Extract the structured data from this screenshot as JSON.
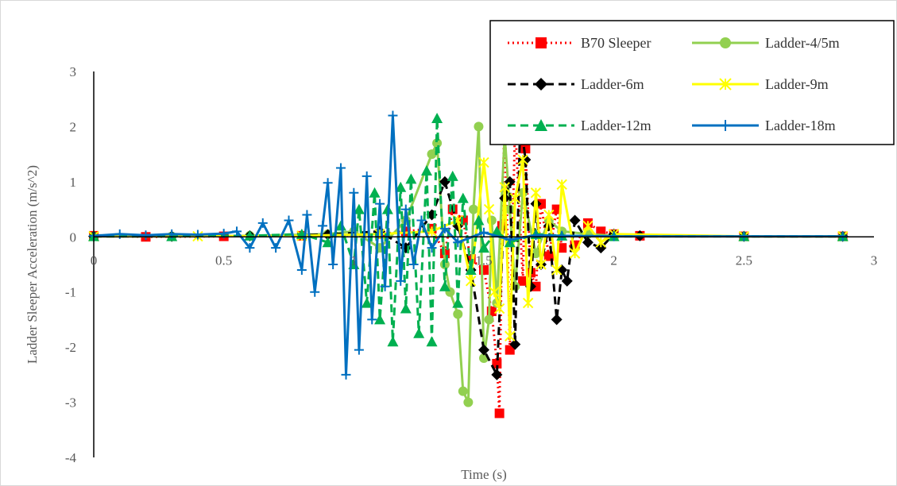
{
  "chart_data": {
    "type": "line",
    "title": "",
    "xlabel": "Time (s)",
    "ylabel": "Ladder Sleeper Acceleration (m/s^2)",
    "xlim": [
      0,
      3
    ],
    "ylim": [
      -4,
      3
    ],
    "x_ticks": [
      0,
      0.5,
      1,
      1.5,
      2,
      2.5,
      3
    ],
    "x_tick_labels": [
      "0",
      "0.5",
      "1",
      "1.5",
      "2",
      "2.5",
      "3"
    ],
    "y_ticks": [
      -4,
      -3,
      -2,
      -1,
      0,
      1,
      2,
      3
    ],
    "y_tick_labels": [
      "-4",
      "-3",
      "-2",
      "-1",
      "0",
      "1",
      "2",
      "3"
    ],
    "grid": false,
    "legend_position": "top-right",
    "series": [
      {
        "name": "B70 Sleeper",
        "color": "#ff0000",
        "dash": "dotted",
        "marker": "square",
        "points": [
          [
            0.0,
            0.02
          ],
          [
            0.2,
            0.0
          ],
          [
            0.5,
            0.01
          ],
          [
            0.8,
            0.02
          ],
          [
            1.1,
            0.05
          ],
          [
            1.2,
            0.1
          ],
          [
            1.3,
            0.15
          ],
          [
            1.35,
            -0.3
          ],
          [
            1.38,
            0.5
          ],
          [
            1.42,
            0.3
          ],
          [
            1.45,
            -0.4
          ],
          [
            1.5,
            -0.6
          ],
          [
            1.53,
            -1.35
          ],
          [
            1.55,
            -2.3
          ],
          [
            1.56,
            -3.2
          ],
          [
            1.57,
            0.2
          ],
          [
            1.58,
            2.25
          ],
          [
            1.6,
            -2.05
          ],
          [
            1.62,
            2.05
          ],
          [
            1.65,
            -0.8
          ],
          [
            1.66,
            1.6
          ],
          [
            1.68,
            -0.65
          ],
          [
            1.7,
            -0.9
          ],
          [
            1.72,
            0.6
          ],
          [
            1.75,
            -0.35
          ],
          [
            1.78,
            0.5
          ],
          [
            1.8,
            -0.2
          ],
          [
            1.85,
            -0.15
          ],
          [
            1.9,
            0.25
          ],
          [
            1.95,
            0.1
          ],
          [
            2.0,
            0.05
          ],
          [
            2.1,
            0.02
          ],
          [
            2.5,
            0.01
          ],
          [
            2.88,
            0.01
          ]
        ]
      },
      {
        "name": "Ladder-4/5m",
        "color": "#92d050",
        "dash": "solid",
        "marker": "circle",
        "points": [
          [
            0.0,
            0.01
          ],
          [
            0.3,
            0.01
          ],
          [
            0.6,
            0.02
          ],
          [
            0.9,
            0.05
          ],
          [
            1.0,
            0.1
          ],
          [
            1.1,
            -0.2
          ],
          [
            1.2,
            0.3
          ],
          [
            1.3,
            1.5
          ],
          [
            1.32,
            1.7
          ],
          [
            1.35,
            -0.5
          ],
          [
            1.37,
            -1.0
          ],
          [
            1.4,
            -1.4
          ],
          [
            1.42,
            -2.8
          ],
          [
            1.44,
            -3.0
          ],
          [
            1.46,
            0.5
          ],
          [
            1.48,
            2.0
          ],
          [
            1.5,
            -2.2
          ],
          [
            1.52,
            -1.5
          ],
          [
            1.53,
            0.3
          ],
          [
            1.55,
            -1.2
          ],
          [
            1.58,
            1.85
          ],
          [
            1.6,
            0.5
          ],
          [
            1.62,
            -0.9
          ],
          [
            1.65,
            0.8
          ],
          [
            1.7,
            -0.3
          ],
          [
            1.75,
            0.3
          ],
          [
            1.8,
            0.1
          ],
          [
            1.9,
            0.05
          ],
          [
            2.0,
            0.02
          ],
          [
            2.5,
            0.01
          ],
          [
            2.88,
            0.01
          ]
        ]
      },
      {
        "name": "Ladder-6m",
        "color": "#000000",
        "dash": "dashed",
        "marker": "diamond",
        "points": [
          [
            0.0,
            0.01
          ],
          [
            0.3,
            0.01
          ],
          [
            0.6,
            0.02
          ],
          [
            0.9,
            0.04
          ],
          [
            1.1,
            0.1
          ],
          [
            1.2,
            -0.2
          ],
          [
            1.3,
            0.4
          ],
          [
            1.35,
            1.0
          ],
          [
            1.4,
            0.2
          ],
          [
            1.45,
            -0.6
          ],
          [
            1.5,
            -2.05
          ],
          [
            1.55,
            -2.5
          ],
          [
            1.58,
            0.7
          ],
          [
            1.6,
            1.0
          ],
          [
            1.62,
            -1.95
          ],
          [
            1.64,
            2.15
          ],
          [
            1.66,
            1.4
          ],
          [
            1.68,
            -0.9
          ],
          [
            1.7,
            0.6
          ],
          [
            1.72,
            -0.5
          ],
          [
            1.75,
            0.2
          ],
          [
            1.78,
            -1.5
          ],
          [
            1.8,
            -0.6
          ],
          [
            1.82,
            -0.8
          ],
          [
            1.85,
            0.3
          ],
          [
            1.9,
            -0.1
          ],
          [
            1.95,
            -0.2
          ],
          [
            2.0,
            0.05
          ],
          [
            2.1,
            0.02
          ],
          [
            2.5,
            0.01
          ],
          [
            2.88,
            0.01
          ]
        ]
      },
      {
        "name": "Ladder-9m",
        "color": "#ffff00",
        "dash": "solid",
        "marker": "star",
        "points": [
          [
            0.0,
            0.01
          ],
          [
            0.4,
            0.01
          ],
          [
            0.8,
            0.02
          ],
          [
            1.1,
            0.05
          ],
          [
            1.3,
            0.1
          ],
          [
            1.4,
            0.3
          ],
          [
            1.45,
            -0.8
          ],
          [
            1.5,
            1.35
          ],
          [
            1.52,
            0.5
          ],
          [
            1.54,
            -1.0
          ],
          [
            1.56,
            -1.3
          ],
          [
            1.58,
            0.9
          ],
          [
            1.6,
            -1.8
          ],
          [
            1.62,
            0.7
          ],
          [
            1.65,
            1.4
          ],
          [
            1.67,
            -1.2
          ],
          [
            1.7,
            0.8
          ],
          [
            1.72,
            -0.5
          ],
          [
            1.75,
            0.4
          ],
          [
            1.78,
            -0.6
          ],
          [
            1.8,
            0.95
          ],
          [
            1.85,
            -0.3
          ],
          [
            1.9,
            0.2
          ],
          [
            1.95,
            -0.1
          ],
          [
            2.0,
            0.05
          ],
          [
            2.5,
            0.01
          ],
          [
            2.88,
            0.01
          ]
        ]
      },
      {
        "name": "Ladder-12m",
        "color": "#00b050",
        "dash": "dashed",
        "marker": "triangle",
        "points": [
          [
            0.0,
            0.01
          ],
          [
            0.3,
            0.01
          ],
          [
            0.6,
            0.02
          ],
          [
            0.8,
            0.05
          ],
          [
            0.9,
            -0.1
          ],
          [
            0.95,
            0.2
          ],
          [
            1.0,
            -0.5
          ],
          [
            1.02,
            0.5
          ],
          [
            1.05,
            -1.2
          ],
          [
            1.08,
            0.8
          ],
          [
            1.1,
            -1.5
          ],
          [
            1.13,
            0.5
          ],
          [
            1.15,
            -1.9
          ],
          [
            1.18,
            0.9
          ],
          [
            1.2,
            -1.3
          ],
          [
            1.22,
            1.05
          ],
          [
            1.25,
            -1.75
          ],
          [
            1.28,
            1.2
          ],
          [
            1.3,
            -1.9
          ],
          [
            1.32,
            2.15
          ],
          [
            1.35,
            -0.9
          ],
          [
            1.38,
            1.1
          ],
          [
            1.4,
            -1.2
          ],
          [
            1.42,
            0.7
          ],
          [
            1.45,
            -0.6
          ],
          [
            1.48,
            0.3
          ],
          [
            1.5,
            -0.2
          ],
          [
            1.55,
            0.1
          ],
          [
            1.6,
            -0.1
          ],
          [
            1.7,
            0.05
          ],
          [
            1.8,
            0.02
          ],
          [
            2.0,
            0.01
          ],
          [
            2.5,
            0.01
          ],
          [
            2.88,
            0.01
          ]
        ]
      },
      {
        "name": "Ladder-18m",
        "color": "#0070c0",
        "dash": "solid",
        "marker": "plus",
        "points": [
          [
            0.0,
            0.02
          ],
          [
            0.1,
            0.05
          ],
          [
            0.2,
            0.03
          ],
          [
            0.3,
            0.05
          ],
          [
            0.4,
            0.04
          ],
          [
            0.5,
            0.06
          ],
          [
            0.55,
            0.1
          ],
          [
            0.6,
            -0.2
          ],
          [
            0.65,
            0.25
          ],
          [
            0.7,
            -0.2
          ],
          [
            0.75,
            0.3
          ],
          [
            0.8,
            -0.6
          ],
          [
            0.82,
            0.4
          ],
          [
            0.85,
            -1.0
          ],
          [
            0.88,
            0.2
          ],
          [
            0.9,
            0.98
          ],
          [
            0.92,
            -0.5
          ],
          [
            0.95,
            1.25
          ],
          [
            0.97,
            -2.5
          ],
          [
            1.0,
            0.8
          ],
          [
            1.02,
            -2.05
          ],
          [
            1.05,
            1.1
          ],
          [
            1.07,
            -1.5
          ],
          [
            1.1,
            0.6
          ],
          [
            1.12,
            -0.9
          ],
          [
            1.15,
            2.2
          ],
          [
            1.18,
            -0.8
          ],
          [
            1.2,
            0.5
          ],
          [
            1.23,
            -0.5
          ],
          [
            1.26,
            0.3
          ],
          [
            1.3,
            -0.2
          ],
          [
            1.35,
            0.15
          ],
          [
            1.4,
            -0.1
          ],
          [
            1.5,
            0.08
          ],
          [
            1.6,
            -0.05
          ],
          [
            1.7,
            0.03
          ],
          [
            1.8,
            0.02
          ],
          [
            2.0,
            0.01
          ],
          [
            2.5,
            0.01
          ],
          [
            2.88,
            0.01
          ]
        ]
      }
    ]
  }
}
